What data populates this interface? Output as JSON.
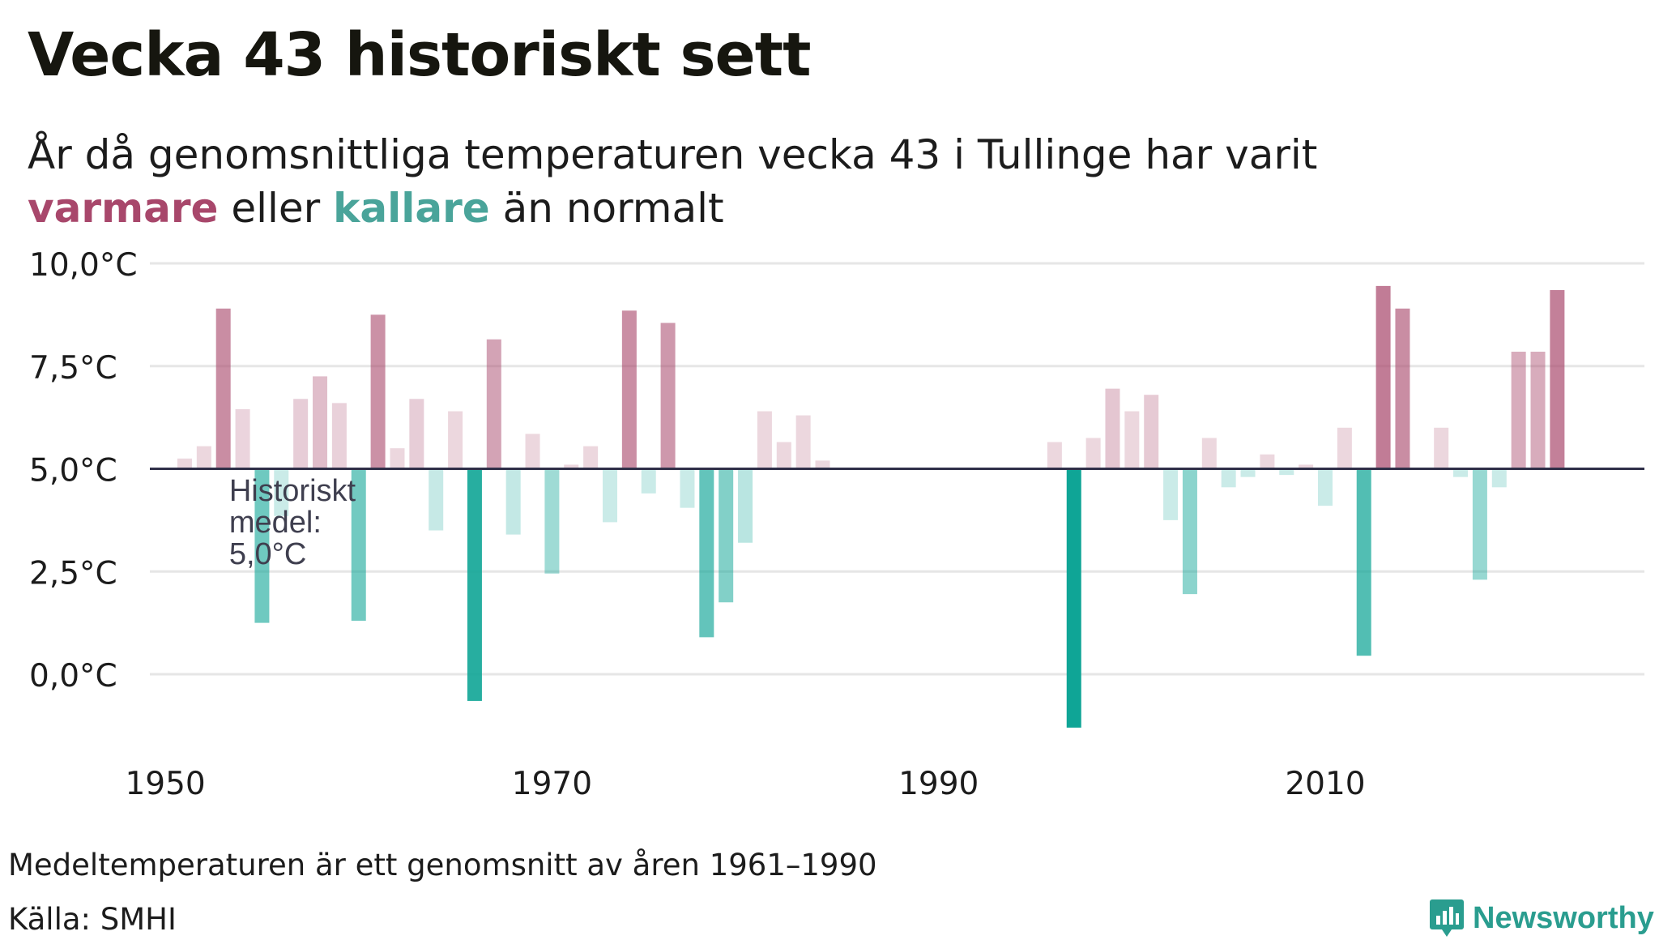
{
  "header": {
    "title": "Vecka 43 historiskt sett",
    "subtitle_part1": "År då genomsnittliga temperaturen vecka 43 i Tullinge har varit",
    "subtitle_warm": "varmare",
    "subtitle_mid": "eller",
    "subtitle_cold": "kallare",
    "subtitle_end": "än normalt"
  },
  "footer": {
    "note": "Medeltemperaturen är ett genomsnitt av åren 1961–1990",
    "source": "Källa: SMHI",
    "brand": "Newsworthy"
  },
  "colors": {
    "warm": "#a8476b",
    "cold": "#0fa596",
    "baseline": "#2f2f48",
    "grid": "#e6e6e6",
    "annotation": "#3f3f4f"
  },
  "chart_data": {
    "type": "bar",
    "title": "Vecka 43 historiskt sett",
    "xlabel": "",
    "ylabel": "",
    "baseline": 5.0,
    "ylim": [
      -1.5,
      10.5
    ],
    "xlim": [
      1949.2,
      2026.3
    ],
    "yticks": [
      0,
      2.5,
      5,
      7.5,
      10
    ],
    "ytick_labels": [
      "0,0°C",
      "2,5°C",
      "5,0°C",
      "7,5°C",
      "10,0°C"
    ],
    "xticks": [
      1950,
      1970,
      1990,
      2010
    ],
    "xtick_labels": [
      "1950",
      "1970",
      "1990",
      "2010"
    ],
    "grid": true,
    "annotation": {
      "year": 1953.3,
      "value": 4.6,
      "lines": [
        "Historiskt",
        "medel:",
        "5,0°C"
      ]
    },
    "x": [
      1951,
      1952,
      1953,
      1954,
      1955,
      1956,
      1957,
      1958,
      1959,
      1960,
      1961,
      1962,
      1963,
      1964,
      1965,
      1966,
      1967,
      1968,
      1969,
      1970,
      1971,
      1972,
      1973,
      1974,
      1975,
      1976,
      1977,
      1978,
      1979,
      1980,
      1981,
      1982,
      1983,
      1984,
      1996,
      1997,
      1998,
      1999,
      2000,
      2001,
      2002,
      2003,
      2004,
      2005,
      2006,
      2007,
      2008,
      2009,
      2010,
      2011,
      2012,
      2013,
      2014,
      2015,
      2016,
      2017,
      2018,
      2019,
      2020,
      2021,
      2022
    ],
    "values": [
      5.25,
      5.55,
      8.9,
      6.45,
      1.25,
      3.85,
      6.7,
      7.25,
      6.6,
      1.3,
      8.75,
      5.5,
      6.7,
      3.5,
      6.4,
      -0.65,
      8.15,
      3.4,
      5.85,
      2.45,
      5.1,
      5.55,
      3.7,
      8.85,
      4.4,
      8.55,
      4.05,
      0.9,
      1.75,
      3.2,
      6.4,
      5.65,
      6.3,
      5.2,
      5.65,
      -1.3,
      5.75,
      6.95,
      6.4,
      6.8,
      3.75,
      1.95,
      5.75,
      4.55,
      4.8,
      5.35,
      4.85,
      5.1,
      4.1,
      6.0,
      0.45,
      9.45,
      8.9,
      5.0,
      6.0,
      4.8,
      2.3,
      4.55,
      7.85,
      7.85,
      9.35
    ]
  }
}
